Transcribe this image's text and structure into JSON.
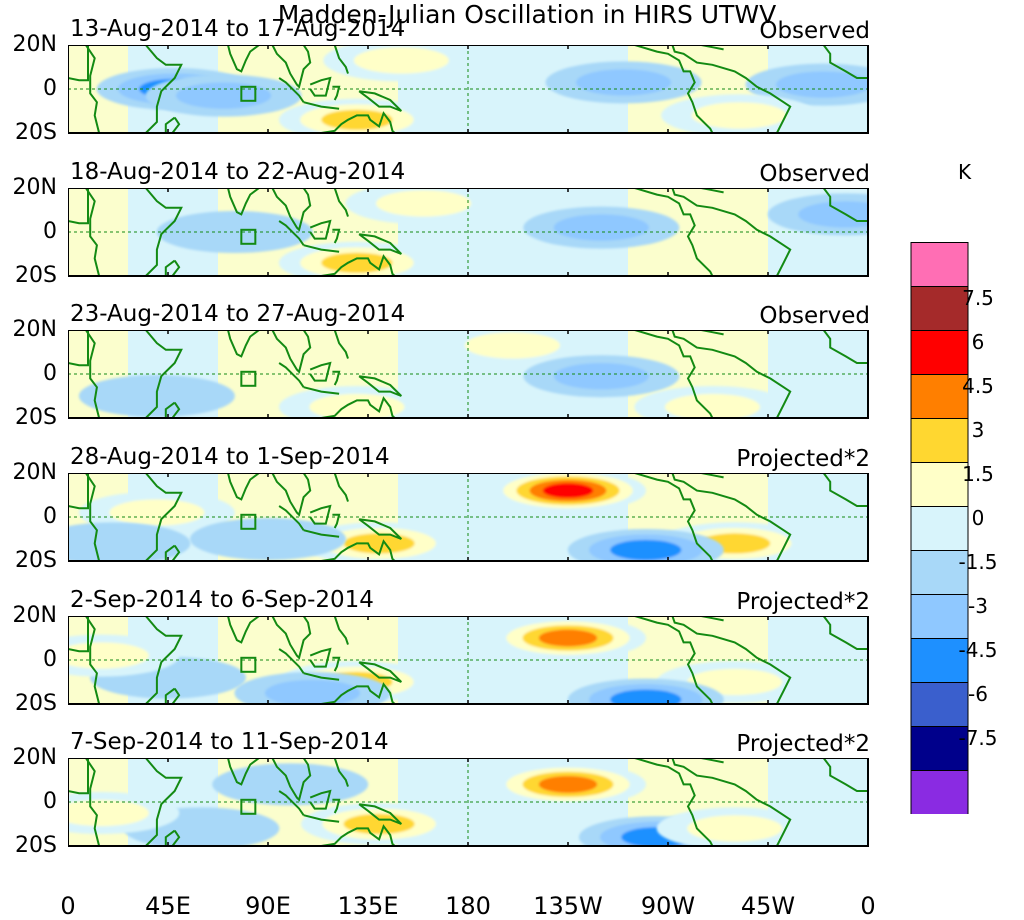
{
  "chart_data": {
    "type": "heatmap",
    "title": "Madden-Julian Oscillation in HIRS UTWV",
    "units_label": "K",
    "x_ticks": [
      "0",
      "45E",
      "90E",
      "135E",
      "180",
      "135W",
      "90W",
      "45W",
      "0"
    ],
    "y_ticks": [
      "20N",
      "0",
      "20S"
    ],
    "xlim": [
      0,
      360
    ],
    "ylim": [
      -20,
      20
    ],
    "colorbar": {
      "colors": [
        "#8a2be2",
        "#00008b",
        "#3a5fcd",
        "#1e90ff",
        "#8fc8ff",
        "#a8d8f8",
        "#d8f4fb",
        "#ffffc8",
        "#ffd730",
        "#ff7f00",
        "#ff0000",
        "#a52a2a",
        "#ff6eb4"
      ],
      "labels": [
        "-7.5",
        "-6",
        "-4.5",
        "-3",
        "-1.5",
        "0",
        "1.5",
        "3",
        "4.5",
        "6",
        "7.5"
      ],
      "levels": [
        -7.5,
        -6,
        -4.5,
        -3,
        -1.5,
        0,
        1.5,
        3,
        4.5,
        6,
        7.5
      ]
    },
    "panels": [
      {
        "date": "13-Aug-2014 to 17-Aug-2014",
        "status": "Observed",
        "anomalies": [
          {
            "lon": 48,
            "lat": 0,
            "value": -3.5
          },
          {
            "lon": 70,
            "lat": -3,
            "value": -2
          },
          {
            "lon": 130,
            "lat": -14,
            "value": 4.6
          },
          {
            "lon": 150,
            "lat": 13,
            "value": 2
          },
          {
            "lon": 250,
            "lat": 3,
            "value": -2
          },
          {
            "lon": 340,
            "lat": 2,
            "value": -2
          },
          {
            "lon": 302,
            "lat": -12,
            "value": 2
          }
        ]
      },
      {
        "date": "18-Aug-2014 to 22-Aug-2014",
        "status": "Observed",
        "anomalies": [
          {
            "lon": 130,
            "lat": -14,
            "value": 4.6
          },
          {
            "lon": 160,
            "lat": 13,
            "value": 2
          },
          {
            "lon": 240,
            "lat": 2,
            "value": -2
          },
          {
            "lon": 350,
            "lat": 8,
            "value": -2
          },
          {
            "lon": 75,
            "lat": 0,
            "value": -1.6
          }
        ]
      },
      {
        "date": "23-Aug-2014 to 27-Aug-2014",
        "status": "Observed",
        "anomalies": [
          {
            "lon": 130,
            "lat": -15,
            "value": 3
          },
          {
            "lon": 200,
            "lat": 13,
            "value": 2
          },
          {
            "lon": 240,
            "lat": -1,
            "value": -2
          },
          {
            "lon": 290,
            "lat": -15,
            "value": 2
          },
          {
            "lon": 40,
            "lat": -10,
            "value": -1.6
          }
        ]
      },
      {
        "date": "28-Aug-2014 to 1-Sep-2014",
        "status": "Projected*2",
        "anomalies": [
          {
            "lon": 225,
            "lat": 12,
            "value": 6.5
          },
          {
            "lon": 140,
            "lat": -12,
            "value": 4.6
          },
          {
            "lon": 300,
            "lat": -12,
            "value": 3.5
          },
          {
            "lon": 260,
            "lat": -15,
            "value": -3.5
          },
          {
            "lon": 40,
            "lat": 2,
            "value": 3
          },
          {
            "lon": 90,
            "lat": -10,
            "value": -1.6
          },
          {
            "lon": 20,
            "lat": -12,
            "value": -1.6
          }
        ]
      },
      {
        "date": "2-Sep-2014 to 6-Sep-2014",
        "status": "Projected*2",
        "anomalies": [
          {
            "lon": 225,
            "lat": 10,
            "value": 6
          },
          {
            "lon": 130,
            "lat": -10,
            "value": 4.6
          },
          {
            "lon": 300,
            "lat": -10,
            "value": 2
          },
          {
            "lon": 260,
            "lat": -18,
            "value": -3.5
          },
          {
            "lon": 110,
            "lat": -15,
            "value": -3
          },
          {
            "lon": 45,
            "lat": -8,
            "value": -1.6
          },
          {
            "lon": 15,
            "lat": 2,
            "value": 2
          }
        ]
      },
      {
        "date": "7-Sep-2014 to 11-Sep-2014",
        "status": "Projected*2",
        "anomalies": [
          {
            "lon": 225,
            "lat": 8,
            "value": 5
          },
          {
            "lon": 140,
            "lat": -10,
            "value": 4.6
          },
          {
            "lon": 265,
            "lat": -16,
            "value": -3.5
          },
          {
            "lon": 300,
            "lat": -12,
            "value": 2
          },
          {
            "lon": 100,
            "lat": 8,
            "value": -1.6
          },
          {
            "lon": 60,
            "lat": -12,
            "value": -1.6
          },
          {
            "lon": 15,
            "lat": -5,
            "value": 2
          }
        ]
      }
    ]
  }
}
